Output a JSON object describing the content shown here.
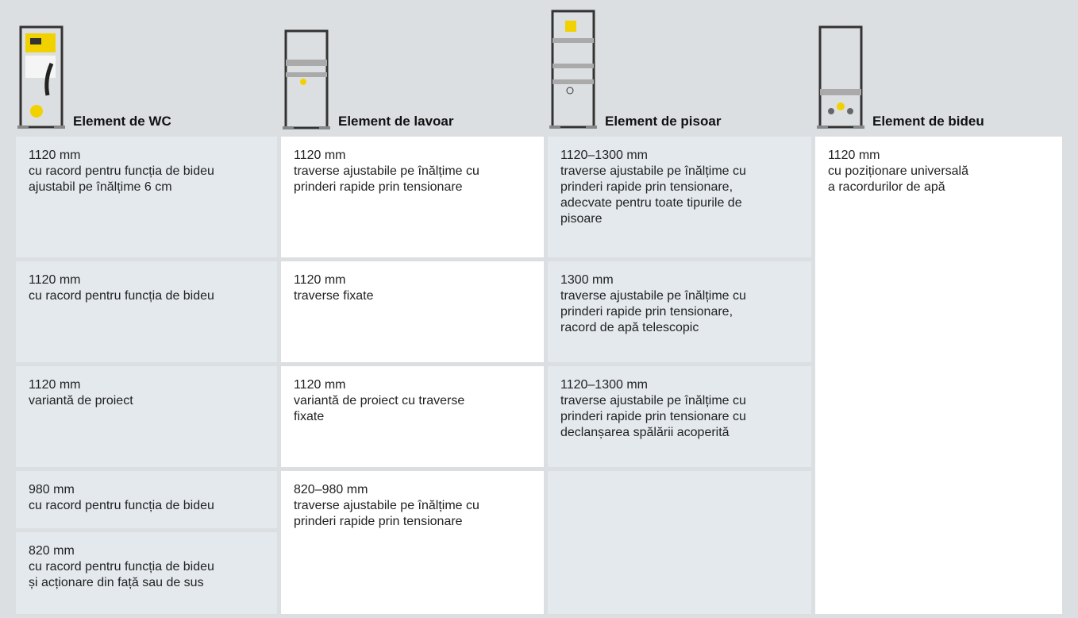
{
  "columns": [
    {
      "title": "Element de WC",
      "cells": [
        [
          "1120 mm",
          "cu racord pentru funcția de bideu",
          "ajustabil pe înălțime 6 cm"
        ],
        [
          "1120 mm",
          "cu racord pentru funcția de bideu"
        ],
        [
          "1120 mm",
          "variantă de proiect"
        ],
        [
          "980 mm",
          "cu racord pentru funcția de bideu"
        ],
        [
          "820 mm",
          "cu racord pentru funcția de bideu",
          "și acționare din față sau de sus"
        ]
      ]
    },
    {
      "title": "Element de lavoar",
      "cells": [
        [
          "1120 mm",
          "traverse ajustabile pe înălțime cu",
          "prinderi rapide prin tensionare"
        ],
        [
          "1120 mm",
          "traverse fixate"
        ],
        [
          "1120 mm",
          "variantă de proiect cu traverse",
          "fixate"
        ],
        [
          "820–980 mm",
          "traverse ajustabile pe înălțime cu",
          "prinderi rapide prin tensionare"
        ]
      ]
    },
    {
      "title": "Element de pisoar",
      "cells": [
        [
          "1120–1300 mm",
          "traverse ajustabile pe înălțime cu",
          "prinderi rapide prin tensionare,",
          "adecvate pentru toate tipurile de",
          "pisoare"
        ],
        [
          "1300 mm",
          "traverse ajustabile pe înălțime cu",
          "prinderi rapide prin tensionare,",
          "racord de apă telescopic"
        ],
        [
          "1120–1300 mm",
          "traverse ajustabile pe înălțime cu",
          "prinderi rapide prin tensionare cu",
          "declanșarea spălării acoperită"
        ]
      ]
    },
    {
      "title": "Element de bideu",
      "cells": [
        [
          "1120 mm",
          "cu poziționare universală",
          "a racordurilor de apă"
        ]
      ]
    }
  ]
}
